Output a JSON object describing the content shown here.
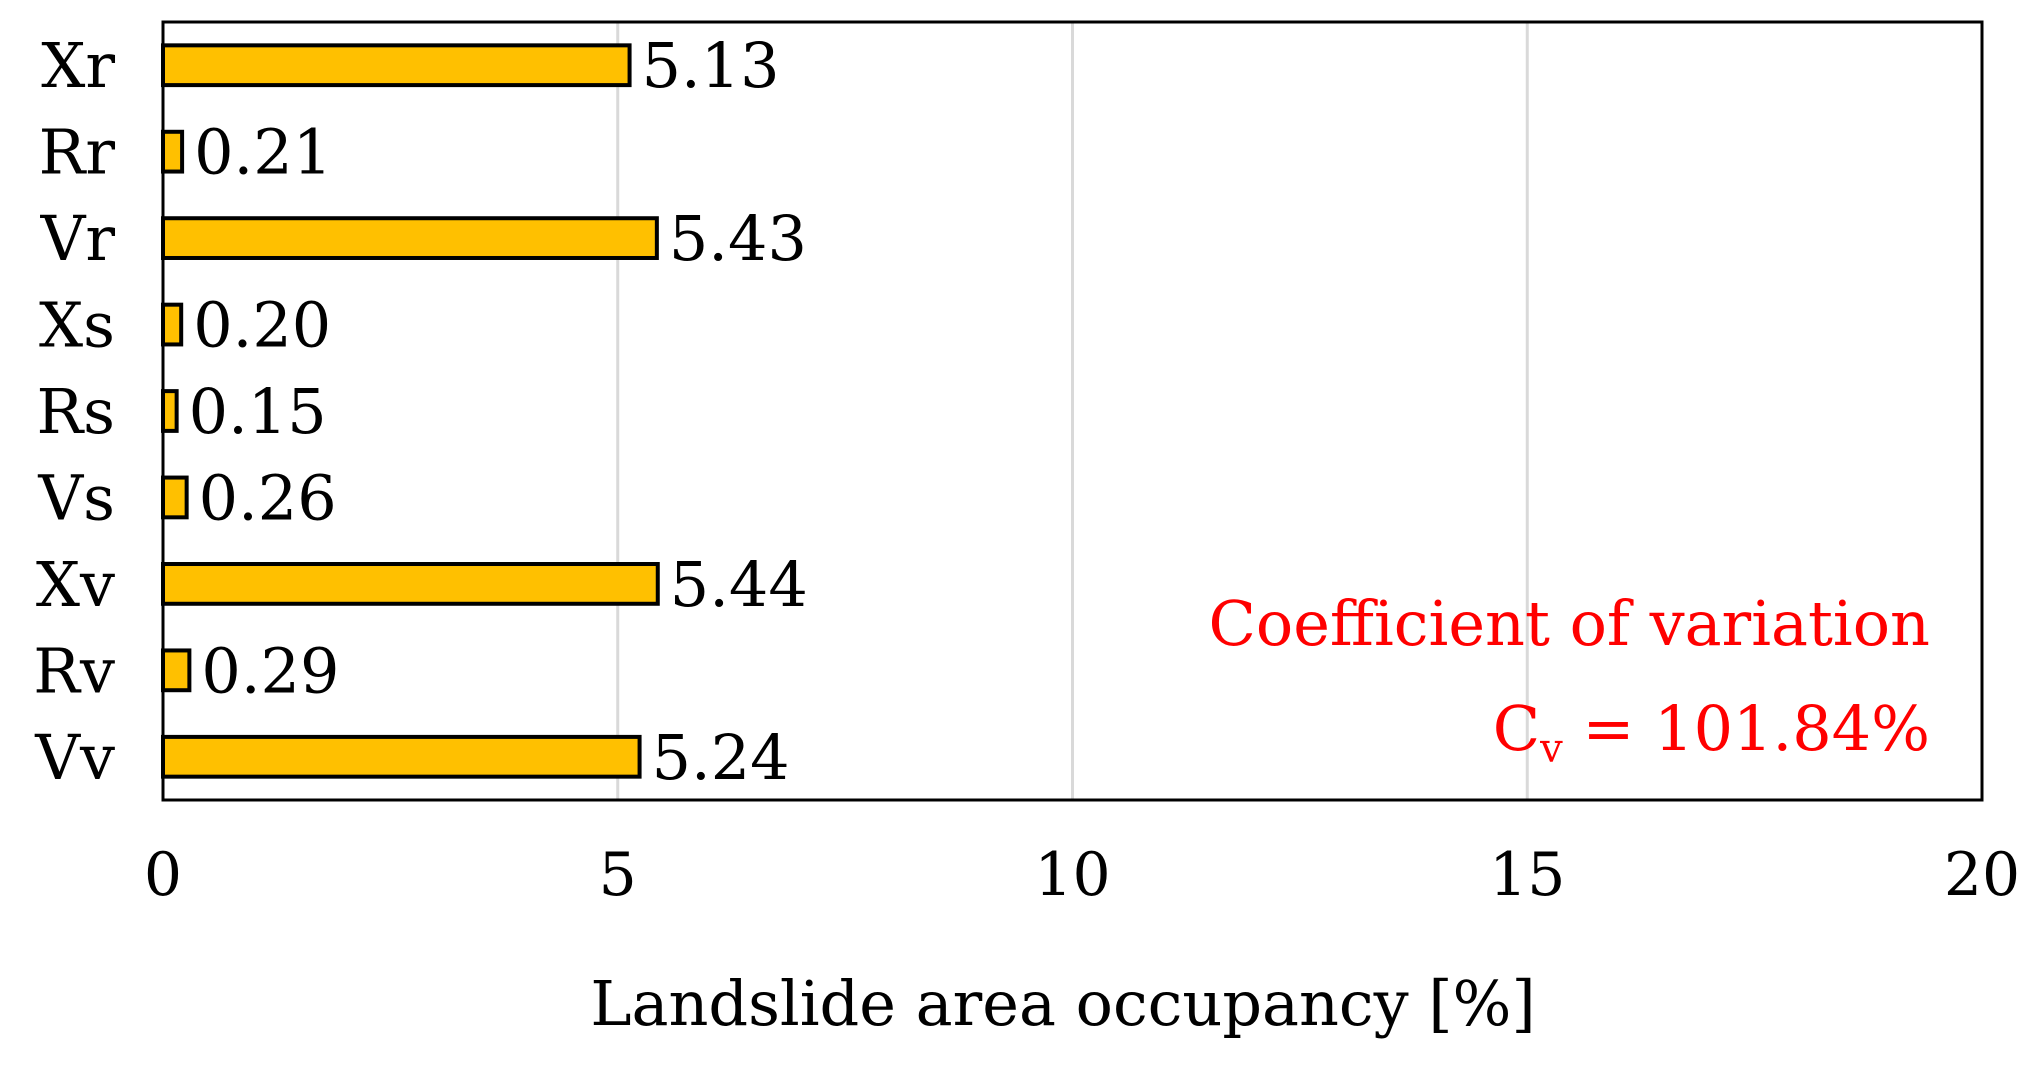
{
  "chart_data": {
    "type": "bar",
    "orientation": "horizontal",
    "categories": [
      "Xr",
      "Rr",
      "Vr",
      "Xs",
      "Rs",
      "Vs",
      "Xv",
      "Rv",
      "Vv"
    ],
    "values": [
      5.13,
      0.21,
      5.43,
      0.2,
      0.15,
      0.26,
      5.44,
      0.29,
      5.24
    ],
    "value_labels": [
      "5.13",
      "0.21",
      "5.43",
      "0.20",
      "0.15",
      "0.26",
      "5.44",
      "0.29",
      "5.24"
    ],
    "title": "",
    "xlabel": "Landslide area occupancy [%]",
    "ylabel": "",
    "xlim": [
      0,
      20
    ],
    "xticks": [
      "0",
      "5",
      "10",
      "15",
      "20"
    ],
    "grid": "vertical",
    "legend": "none",
    "annotation": {
      "line1": "Coefficient of variation",
      "symbol": "C",
      "subscript": "v",
      "value_text": " = 101.84%"
    }
  },
  "colors": {
    "bar_fill": "#FFC000",
    "bar_stroke": "#000000",
    "grid": "#D9D9D9",
    "annotation": "#FF0000"
  }
}
